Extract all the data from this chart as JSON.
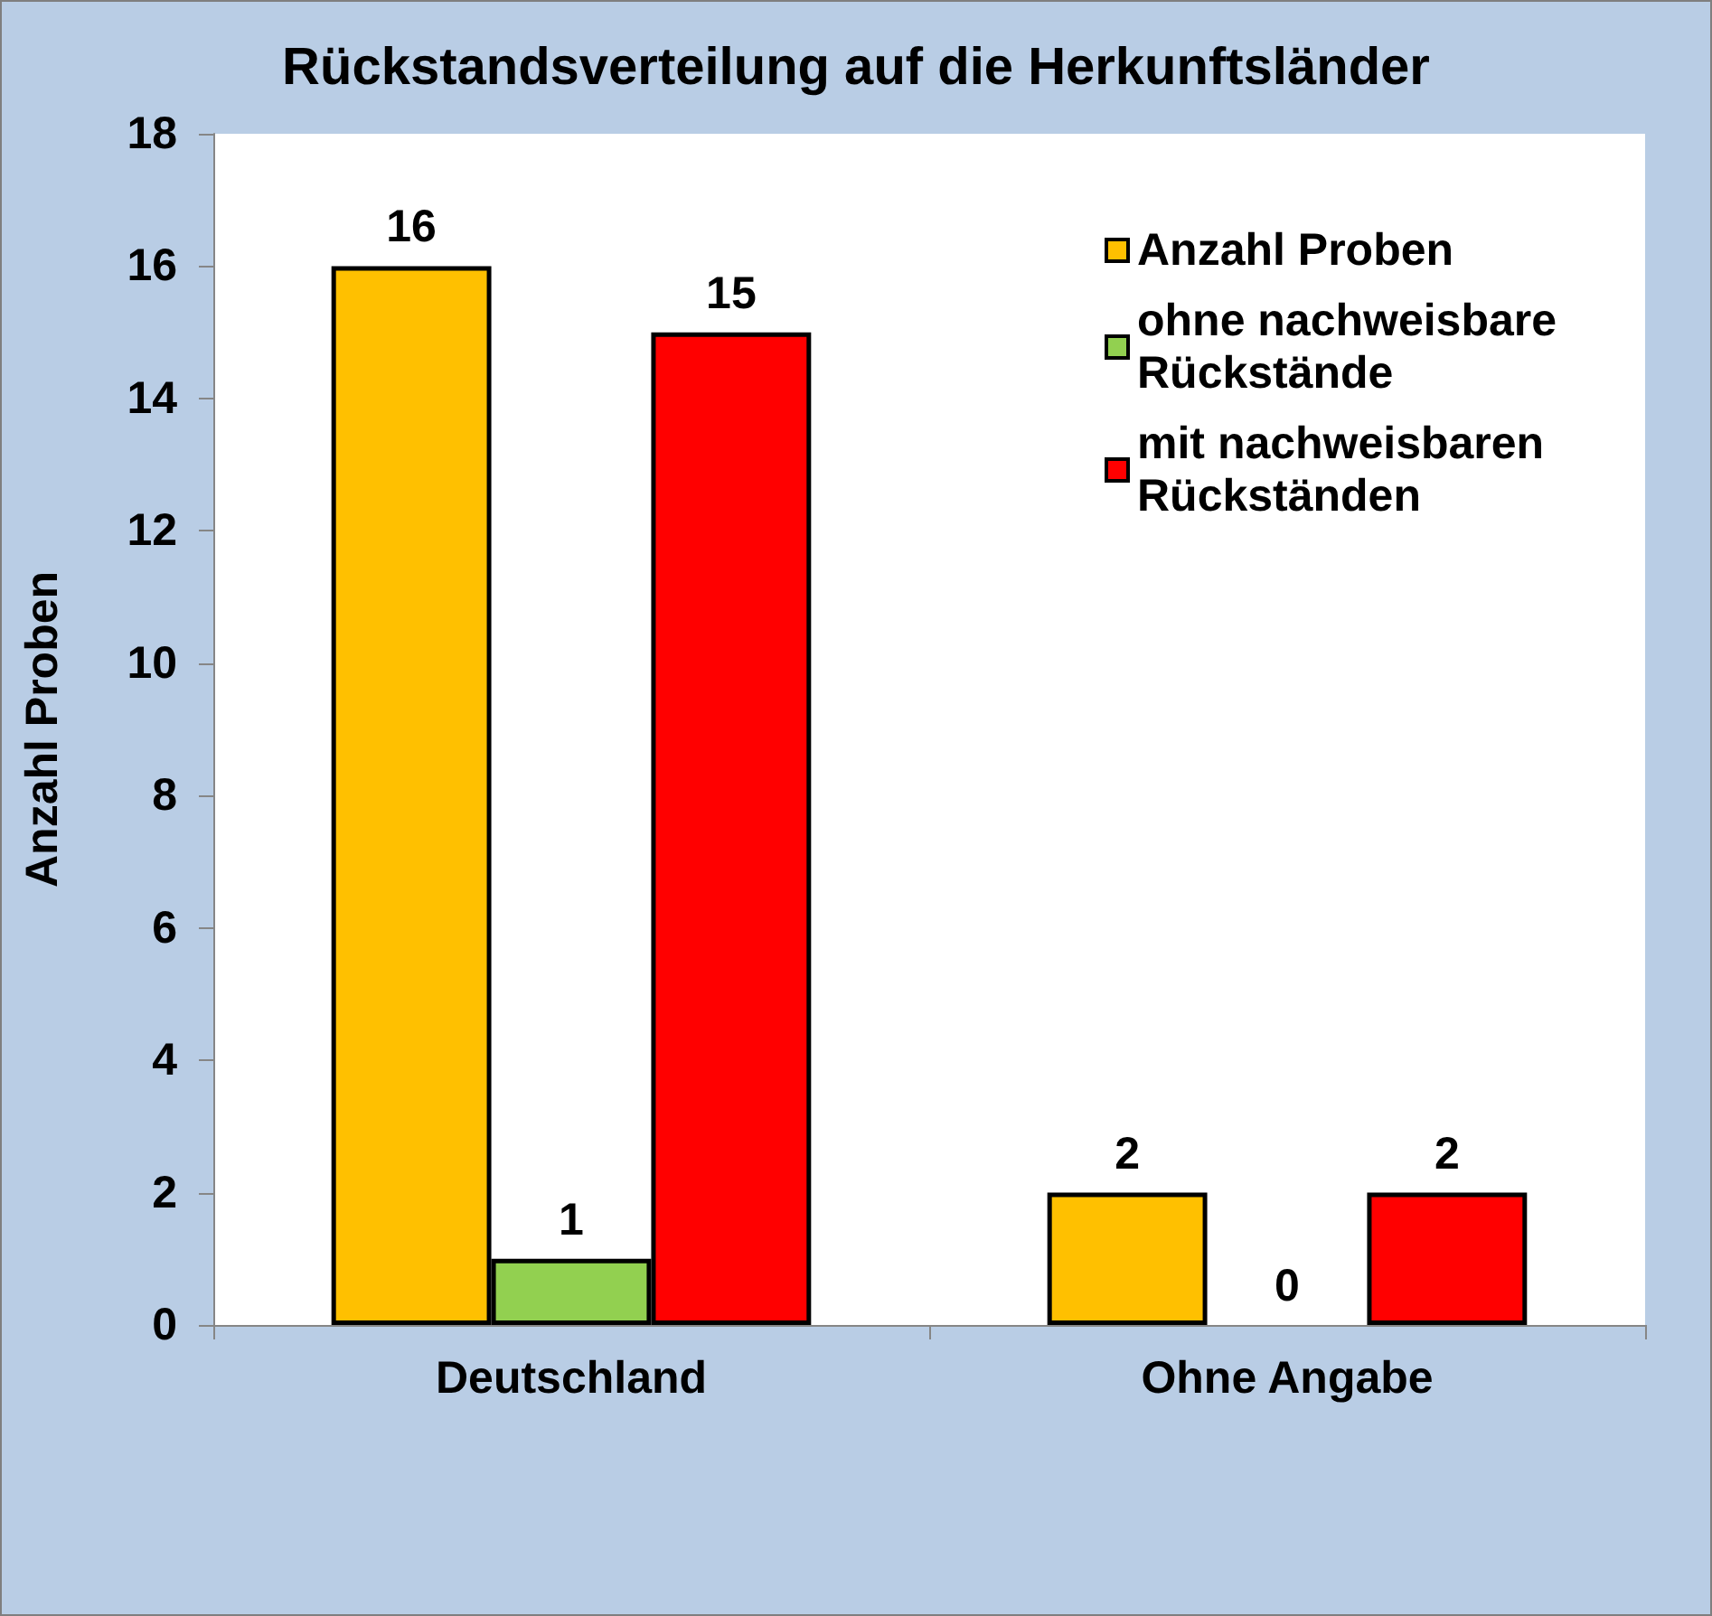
{
  "chart_data": {
    "type": "bar",
    "title": "Rückstandsverteilung auf die Herkunftsländer",
    "ylabel": "Anzahl Proben",
    "categories": [
      "Deutschland",
      "Ohne Angabe"
    ],
    "series": [
      {
        "name": "Anzahl Proben",
        "color": "#ffc000",
        "values": [
          16,
          2
        ]
      },
      {
        "name": "ohne nachweisbare Rückstände",
        "color": "#92d050",
        "values": [
          1,
          0
        ]
      },
      {
        "name": "mit nachweisbaren Rückständen",
        "color": "#ff0000",
        "values": [
          15,
          2
        ]
      }
    ],
    "ylim": [
      0,
      18
    ],
    "yticks": [
      0,
      2,
      4,
      6,
      8,
      10,
      12,
      14,
      16,
      18
    ],
    "grid": false,
    "legend": "top right",
    "data_labels": true
  }
}
